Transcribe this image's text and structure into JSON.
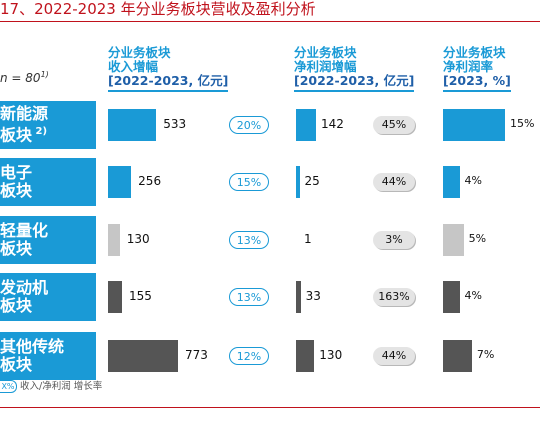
{
  "figure_title": "17、2022-2023 年分业务板块营收及盈利分析",
  "sample_note": "n = 80",
  "sample_note_sup": "1)",
  "column_headers": [
    {
      "line1": "分业务板块",
      "line2": "收入增幅",
      "line3": "[2022-2023, 亿元]"
    },
    {
      "line1": "分业务板块",
      "line2": "净利润增幅",
      "line3": "[2022-2023, 亿元]"
    },
    {
      "line1": "分业务板块",
      "line2": "净利润率",
      "line3": "[2023, %]"
    }
  ],
  "legend_text": "收入/净利润 增长率",
  "legend_pill": "X%",
  "colors": {
    "blue": "#1a9ad6",
    "light_grey": "#c6c6c6",
    "dark_grey": "#555555",
    "title_red": "#c0121c"
  },
  "chart_data": {
    "type": "bar",
    "categories": [
      {
        "line1": "新能源",
        "line2": "板块",
        "sup": "2)"
      },
      {
        "line1": "电子",
        "line2": "板块",
        "sup": ""
      },
      {
        "line1": "轻量化",
        "line2": "板块",
        "sup": ""
      },
      {
        "line1": "发动机",
        "line2": "板块",
        "sup": ""
      },
      {
        "line1": "其他传统",
        "line2": "板块",
        "sup": ""
      }
    ],
    "bar_colors": [
      "blue",
      "blue",
      "light_grey",
      "dark_grey",
      "dark_grey"
    ],
    "revenue_increase": [
      533,
      256,
      130,
      155,
      773
    ],
    "revenue_growth_rate": [
      "20%",
      "15%",
      "13%",
      "13%",
      "12%"
    ],
    "net_profit_increase": [
      142,
      25,
      1,
      33,
      130
    ],
    "net_profit_growth_rate": [
      "45%",
      "44%",
      "3%",
      "163%",
      "44%"
    ],
    "net_profit_margin": [
      15,
      4,
      5,
      4,
      7
    ],
    "net_profit_margin_labels": [
      "15%",
      "4%",
      "5%",
      "4%",
      "7%"
    ]
  }
}
